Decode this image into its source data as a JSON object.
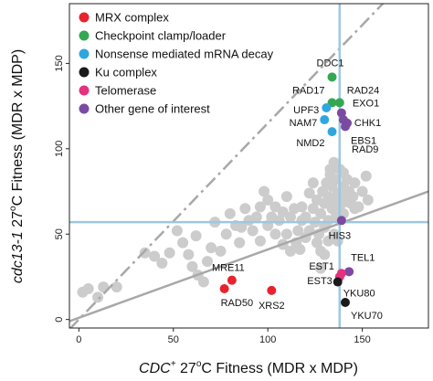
{
  "chart_data": {
    "type": "scatter",
    "xlabel_main": "CDC",
    "xlabel_sup": "+",
    "xlabel_rest": " 27",
    "xlabel_deg": "o",
    "xlabel_tail": "C Fitness (MDR x MDP)",
    "ylabel_main": "cdc13-1",
    "ylabel_rest": " 27",
    "ylabel_deg": "o",
    "ylabel_tail": "C Fitness (MDR x MDP)",
    "xlim": [
      -5,
      185
    ],
    "ylim": [
      -5,
      185
    ],
    "x_ticks": [
      "0",
      "50",
      "100",
      "150"
    ],
    "y_ticks": [
      "0",
      "50",
      "100",
      "150"
    ],
    "x_tick_values": [
      0,
      50,
      100,
      150
    ],
    "y_tick_values": [
      0,
      50,
      100,
      150
    ],
    "threshold_x": 138,
    "threshold_y": 57,
    "diagonal": {
      "slope": 1.15
    },
    "regression": {
      "intercept": 1,
      "slope": 0.4
    },
    "colors": {
      "background": "#cccccc",
      "threshold": "#9cc8df",
      "fit_line": "#a8a8a8",
      "MRX complex": "#e8232c",
      "Checkpoint clamp/loader": "#33a853",
      "Nonsense mediated mRNA decay": "#2ea7df",
      "Ku complex": "#1a1a1a",
      "Telomerase": "#e5327d",
      "Other gene of interest": "#7b4aa1"
    },
    "legend": [
      "MRX complex",
      "Checkpoint clamp/loader",
      "Nonsense mediated mRNA decay",
      "Ku complex",
      "Telomerase",
      "Other gene of interest"
    ],
    "labeled_points": [
      {
        "name": "DDC1",
        "group": "Checkpoint clamp/loader",
        "x": 134,
        "y": 142
      },
      {
        "name": "RAD17",
        "group": "Checkpoint clamp/loader",
        "x": 134,
        "y": 127
      },
      {
        "name": "RAD24",
        "group": "Checkpoint clamp/loader",
        "x": 138,
        "y": 127
      },
      {
        "name": "UPF3",
        "group": "Nonsense mediated mRNA decay",
        "x": 131,
        "y": 124
      },
      {
        "name": "NAM7",
        "group": "Nonsense mediated mRNA decay",
        "x": 130,
        "y": 117
      },
      {
        "name": "NMD2",
        "group": "Nonsense mediated mRNA decay",
        "x": 134,
        "y": 110
      },
      {
        "name": "EXO1",
        "group": "Other gene of interest",
        "x": 139,
        "y": 121
      },
      {
        "name": "CHK1",
        "group": "Other gene of interest",
        "x": 140,
        "y": 117
      },
      {
        "name": "EBS1",
        "group": "Other gene of interest",
        "x": 141,
        "y": 113
      },
      {
        "name": "RAD9",
        "group": "Other gene of interest",
        "x": 142,
        "y": 115
      },
      {
        "name": "HIS3",
        "group": "Other gene of interest",
        "x": 139,
        "y": 58
      },
      {
        "name": "TEL1",
        "group": "Other gene of interest",
        "x": 143,
        "y": 28
      },
      {
        "name": "EST1",
        "group": "Telomerase",
        "x": 139,
        "y": 27
      },
      {
        "name": "EST3",
        "group": "Telomerase",
        "x": 138,
        "y": 25
      },
      {
        "name": "YKU80",
        "group": "Ku complex",
        "x": 137,
        "y": 22
      },
      {
        "name": "YKU70",
        "group": "Ku complex",
        "x": 141,
        "y": 10
      },
      {
        "name": "MRE11",
        "group": "MRX complex",
        "x": 81,
        "y": 23
      },
      {
        "name": "RAD50",
        "group": "MRX complex",
        "x": 77,
        "y": 18
      },
      {
        "name": "XRS2",
        "group": "MRX complex",
        "x": 102,
        "y": 17
      }
    ],
    "background_points": [
      [
        2,
        16
      ],
      [
        5,
        18
      ],
      [
        10,
        13
      ],
      [
        13,
        19
      ],
      [
        20,
        19
      ],
      [
        35,
        39
      ],
      [
        40,
        37
      ],
      [
        44,
        33
      ],
      [
        48,
        39
      ],
      [
        52,
        52
      ],
      [
        55,
        45
      ],
      [
        58,
        38
      ],
      [
        60,
        31
      ],
      [
        63,
        26
      ],
      [
        66,
        22
      ],
      [
        70,
        42
      ],
      [
        72,
        57
      ],
      [
        75,
        40
      ],
      [
        78,
        50
      ],
      [
        80,
        62
      ],
      [
        83,
        55
      ],
      [
        85,
        45
      ],
      [
        88,
        65
      ],
      [
        90,
        58
      ],
      [
        92,
        52
      ],
      [
        94,
        60
      ],
      [
        96,
        66
      ],
      [
        98,
        75
      ],
      [
        100,
        70
      ],
      [
        100,
        55
      ],
      [
        102,
        60
      ],
      [
        104,
        66
      ],
      [
        106,
        58
      ],
      [
        108,
        63
      ],
      [
        110,
        50
      ],
      [
        112,
        60
      ],
      [
        114,
        65
      ],
      [
        115,
        45
      ],
      [
        117,
        41
      ],
      [
        118,
        58
      ],
      [
        120,
        60
      ],
      [
        120,
        48
      ],
      [
        122,
        74
      ],
      [
        122,
        52
      ],
      [
        124,
        65
      ],
      [
        125,
        57
      ],
      [
        126,
        70
      ],
      [
        127,
        50
      ],
      [
        128,
        62
      ],
      [
        129,
        75
      ],
      [
        130,
        68
      ],
      [
        130,
        54
      ],
      [
        131,
        80
      ],
      [
        132,
        72
      ],
      [
        132,
        58
      ],
      [
        133,
        85
      ],
      [
        134,
        78
      ],
      [
        134,
        65
      ],
      [
        135,
        70
      ],
      [
        136,
        60
      ],
      [
        136,
        82
      ],
      [
        137,
        74
      ],
      [
        138,
        66
      ],
      [
        138,
        88
      ],
      [
        139,
        72
      ],
      [
        140,
        78
      ],
      [
        140,
        62
      ],
      [
        141,
        69
      ],
      [
        142,
        82
      ],
      [
        143,
        75
      ],
      [
        144,
        68
      ],
      [
        145,
        72
      ],
      [
        146,
        80
      ],
      [
        148,
        66
      ],
      [
        150,
        75
      ],
      [
        152,
        84
      ],
      [
        153,
        70
      ],
      [
        126,
        45
      ],
      [
        128,
        40
      ],
      [
        130,
        38
      ],
      [
        132,
        46
      ],
      [
        116,
        52
      ],
      [
        118,
        66
      ],
      [
        135,
        50
      ],
      [
        137,
        46
      ],
      [
        104,
        50
      ],
      [
        96,
        46
      ],
      [
        86,
        54
      ],
      [
        62,
        49
      ],
      [
        68,
        34
      ],
      [
        128,
        30
      ],
      [
        133,
        88
      ],
      [
        135,
        92
      ],
      [
        124,
        80
      ],
      [
        146,
        65
      ],
      [
        140,
        86
      ],
      [
        110,
        72
      ],
      [
        112,
        40
      ],
      [
        108,
        44
      ]
    ]
  }
}
